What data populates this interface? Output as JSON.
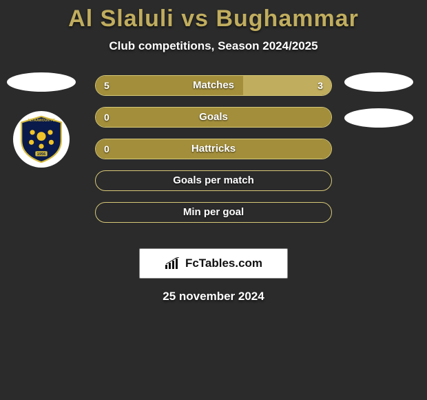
{
  "title": "Al Slaluli vs Bughammar",
  "subtitle": "Club competitions, Season 2024/2025",
  "date": "25 november 2024",
  "badge_text": "FcTables.com",
  "colors": {
    "bar_fill": "#a38f3b",
    "bar_fill_alt": "#c0ad5e",
    "bar_border": "#d7c978",
    "background": "#2b2b2b",
    "title": "#c0ad5e",
    "text": "#ffffff"
  },
  "crest": {
    "name": "Altaawoun FC",
    "year": "1956",
    "shield_fill": "#0a1a4a",
    "star_fill": "#f0c428"
  },
  "stats": [
    {
      "label": "Matches",
      "left_value": "5",
      "right_value": "3",
      "left_pct": 62.5,
      "right_pct": 37.5,
      "left_color": "#a38f3b",
      "right_color": "#c0ad5e"
    },
    {
      "label": "Goals",
      "left_value": "0",
      "right_value": "",
      "left_pct": 100,
      "right_pct": 0,
      "left_color": "#a38f3b",
      "right_color": "#c0ad5e"
    },
    {
      "label": "Hattricks",
      "left_value": "0",
      "right_value": "",
      "left_pct": 100,
      "right_pct": 0,
      "left_color": "#a38f3b",
      "right_color": "#c0ad5e"
    },
    {
      "label": "Goals per match",
      "left_value": "",
      "right_value": "",
      "left_pct": 0,
      "right_pct": 0,
      "left_color": "#a38f3b",
      "right_color": "#c0ad5e"
    },
    {
      "label": "Min per goal",
      "left_value": "",
      "right_value": "",
      "left_pct": 0,
      "right_pct": 0,
      "left_color": "#a38f3b",
      "right_color": "#c0ad5e"
    }
  ],
  "side_badges": {
    "left_top": true,
    "right_top": true,
    "right_second": true
  }
}
